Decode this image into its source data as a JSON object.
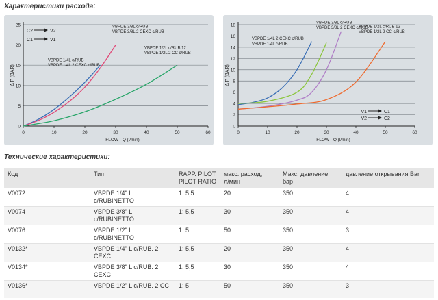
{
  "flow_title": "Характеристики расхода:",
  "tech_title": "Технические характеристики:",
  "chart_data": [
    {
      "type": "line",
      "xlabel": "FLOW - Q (l/min)",
      "ylabel": "Δ P (BAR)",
      "xlim": [
        0,
        60
      ],
      "ylim": [
        0,
        25
      ],
      "xticks": [
        0,
        10,
        20,
        30,
        40,
        50,
        60
      ],
      "yticks": [
        0,
        5,
        10,
        15,
        20,
        25
      ],
      "grid": true,
      "legend_arrows": [
        {
          "from": "C2",
          "to": "V2"
        },
        {
          "from": "C1",
          "to": "V1"
        }
      ],
      "series": [
        {
          "name": "VBPDE 1/4L c/RUB\nVBPDE 1/4L 2 CEXC c/RUB",
          "color": "#3b6fb6",
          "x": [
            0,
            5,
            10,
            15,
            20,
            25
          ],
          "y": [
            0,
            1.7,
            4.1,
            7.2,
            10.8,
            15.0
          ]
        },
        {
          "name": "VBPDE 3/8L c/RUB\nVBPDE 3/8L 2 CEXC c/RUB",
          "color": "#e04a78",
          "x": [
            0,
            5,
            10,
            15,
            20,
            25,
            30
          ],
          "y": [
            0,
            1.4,
            3.4,
            6.1,
            9.6,
            14.3,
            20.0
          ]
        },
        {
          "name": "VBPDE 1/2L c/RUB 12\nVBPDE 1/2L 2 CC c/RUB",
          "color": "#2aa66a",
          "x": [
            0,
            10,
            20,
            30,
            40,
            50
          ],
          "y": [
            0,
            1.3,
            3.5,
            6.6,
            10.3,
            15.0
          ]
        }
      ]
    },
    {
      "type": "line",
      "xlabel": "FLOW - Q (l/min)",
      "ylabel": "Δ P (BAR)",
      "xlim": [
        0,
        60
      ],
      "ylim": [
        0,
        18
      ],
      "xticks": [
        0,
        10,
        20,
        30,
        40,
        50,
        60
      ],
      "yticks": [
        0,
        2,
        4,
        6,
        8,
        10,
        12,
        14,
        16,
        18
      ],
      "grid": true,
      "legend_arrows": [
        {
          "from": "V1",
          "to": "C1"
        },
        {
          "from": "V2",
          "to": "C2"
        }
      ],
      "series": [
        {
          "name": "VBPDE 1/4L c/RUB",
          "color": "#3b6fb6",
          "x": [
            0,
            5,
            10,
            15,
            20,
            25
          ],
          "y": [
            3.8,
            4.2,
            5.0,
            6.8,
            10.0,
            15.0
          ]
        },
        {
          "name": "VBPDE 1/4L 2 CEXC c/RUB",
          "color": "#8cc63e",
          "x": [
            0,
            10,
            20,
            25,
            30
          ],
          "y": [
            4.0,
            4.4,
            6.0,
            9.2,
            14.8
          ]
        },
        {
          "name": "VBPDE 3/8L c/RUB\nVBPDE 3/8L 2 CEXC c/RUB",
          "color": "#b07fc7",
          "x": [
            0,
            10,
            20,
            25,
            30,
            35
          ],
          "y": [
            3.0,
            3.5,
            4.6,
            6.0,
            10.0,
            16.8
          ]
        },
        {
          "name": "VBPDE 1/2L c/RUB 12\nVBPDE 1/2L 2 CC c/RUB",
          "color": "#ef6a2e",
          "x": [
            0,
            10,
            20,
            30,
            40,
            50
          ],
          "y": [
            3.0,
            3.4,
            3.9,
            4.7,
            7.8,
            15.0
          ]
        }
      ]
    }
  ],
  "table": {
    "headers": [
      "Код",
      "Тип",
      "RAPP. PILOT\nPILOT RATIO",
      "макс. расход,\nл/мин",
      "Макс. давление,\nбар",
      "давление открывания Bar"
    ],
    "rows": [
      [
        "V0072",
        "VBPDE 1/4\" L\nc/RUBINETTO",
        "1: 5,5",
        "20",
        "350",
        "4"
      ],
      [
        "V0074",
        "VBPDE 3/8\" L\nc/RUBINETTO",
        "1: 5,5",
        "30",
        "350",
        "4"
      ],
      [
        "V0076",
        "VBPDE 1/2\" L\nc/RUBINETTO",
        "1: 5",
        "50",
        "350",
        "3"
      ],
      [
        "V0132*",
        "VBPDE 1/4\" L c/RUB. 2\nCEXC",
        "1: 5,5",
        "20",
        "350",
        "4"
      ],
      [
        "V0134*",
        "VBPDE 3/8\" L c/RUB. 2\nCEXC",
        "1: 5,5",
        "30",
        "350",
        "4"
      ],
      [
        "V0136*",
        "VBPDE 1/2\" L c/RUB. 2 CC",
        "1: 5",
        "50",
        "350",
        "3"
      ]
    ]
  }
}
